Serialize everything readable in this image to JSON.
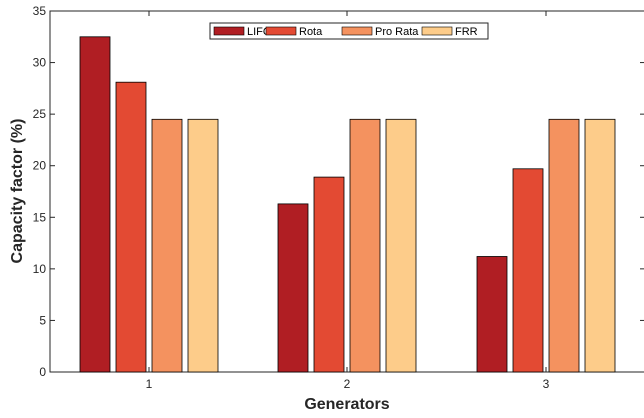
{
  "chart_data": {
    "type": "bar",
    "title": "",
    "xlabel": "Generators",
    "ylabel": "Capacity factor (%)",
    "categories": [
      "1",
      "2",
      "3"
    ],
    "ylim": [
      0,
      35
    ],
    "yticks": [
      0,
      5,
      10,
      15,
      20,
      25,
      30,
      35
    ],
    "grid": false,
    "legend_position": "top-center",
    "series": [
      {
        "name": "LIFO",
        "color": "#b01e23",
        "values": [
          32.5,
          16.3,
          11.2
        ]
      },
      {
        "name": "Rota",
        "color": "#e34a33",
        "values": [
          28.1,
          18.9,
          19.7
        ]
      },
      {
        "name": "Pro Rata",
        "color": "#f4925f",
        "values": [
          24.5,
          24.5,
          24.5
        ]
      },
      {
        "name": "FRR",
        "color": "#fdcc8a",
        "values": [
          24.5,
          24.5,
          24.5
        ]
      }
    ]
  }
}
